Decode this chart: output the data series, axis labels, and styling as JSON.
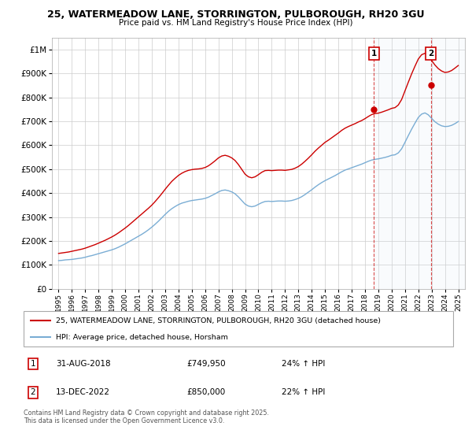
{
  "title": "25, WATERMEADOW LANE, STORRINGTON, PULBOROUGH, RH20 3GU",
  "subtitle": "Price paid vs. HM Land Registry's House Price Index (HPI)",
  "legend_line1": "25, WATERMEADOW LANE, STORRINGTON, PULBOROUGH, RH20 3GU (detached house)",
  "legend_line2": "HPI: Average price, detached house, Horsham",
  "marker1_date": "31-AUG-2018",
  "marker1_price": "£749,950",
  "marker1_hpi": "24% ↑ HPI",
  "marker2_date": "13-DEC-2022",
  "marker2_price": "£850,000",
  "marker2_hpi": "22% ↑ HPI",
  "footer": "Contains HM Land Registry data © Crown copyright and database right 2025.\nThis data is licensed under the Open Government Licence v3.0.",
  "red_color": "#cc0000",
  "blue_color": "#7aadd4",
  "shade_color": "#d8e8f3",
  "background_color": "#ffffff",
  "ylim": [
    0,
    1050000
  ],
  "yticks": [
    0,
    100000,
    200000,
    300000,
    400000,
    500000,
    600000,
    700000,
    800000,
    900000,
    1000000
  ],
  "ytick_labels": [
    "£0",
    "£100K",
    "£200K",
    "£300K",
    "£400K",
    "£500K",
    "£600K",
    "£700K",
    "£800K",
    "£900K",
    "£1M"
  ],
  "xlim_start": 1994.5,
  "xlim_end": 2025.5,
  "xticks": [
    1995,
    1996,
    1997,
    1998,
    1999,
    2000,
    2001,
    2002,
    2003,
    2004,
    2005,
    2006,
    2007,
    2008,
    2009,
    2010,
    2011,
    2012,
    2013,
    2014,
    2015,
    2016,
    2017,
    2018,
    2019,
    2020,
    2021,
    2022,
    2023,
    2024,
    2025
  ],
  "hpi_x": [
    1995.0,
    1995.25,
    1995.5,
    1995.75,
    1996.0,
    1996.25,
    1996.5,
    1996.75,
    1997.0,
    1997.25,
    1997.5,
    1997.75,
    1998.0,
    1998.25,
    1998.5,
    1998.75,
    1999.0,
    1999.25,
    1999.5,
    1999.75,
    2000.0,
    2000.25,
    2000.5,
    2000.75,
    2001.0,
    2001.25,
    2001.5,
    2001.75,
    2002.0,
    2002.25,
    2002.5,
    2002.75,
    2003.0,
    2003.25,
    2003.5,
    2003.75,
    2004.0,
    2004.25,
    2004.5,
    2004.75,
    2005.0,
    2005.25,
    2005.5,
    2005.75,
    2006.0,
    2006.25,
    2006.5,
    2006.75,
    2007.0,
    2007.25,
    2007.5,
    2007.75,
    2008.0,
    2008.25,
    2008.5,
    2008.75,
    2009.0,
    2009.25,
    2009.5,
    2009.75,
    2010.0,
    2010.25,
    2010.5,
    2010.75,
    2011.0,
    2011.25,
    2011.5,
    2011.75,
    2012.0,
    2012.25,
    2012.5,
    2012.75,
    2013.0,
    2013.25,
    2013.5,
    2013.75,
    2014.0,
    2014.25,
    2014.5,
    2014.75,
    2015.0,
    2015.25,
    2015.5,
    2015.75,
    2016.0,
    2016.25,
    2016.5,
    2016.75,
    2017.0,
    2017.25,
    2017.5,
    2017.75,
    2018.0,
    2018.25,
    2018.5,
    2018.75,
    2019.0,
    2019.25,
    2019.5,
    2019.75,
    2020.0,
    2020.25,
    2020.5,
    2020.75,
    2021.0,
    2021.25,
    2021.5,
    2021.75,
    2022.0,
    2022.25,
    2022.5,
    2022.75,
    2023.0,
    2023.25,
    2023.5,
    2023.75,
    2024.0,
    2024.25,
    2024.5,
    2024.75,
    2025.0
  ],
  "hpi_y": [
    118000,
    119000,
    121000,
    122000,
    123000,
    125000,
    127000,
    129000,
    132000,
    136000,
    139000,
    143000,
    147000,
    151000,
    155000,
    159000,
    163000,
    168000,
    174000,
    181000,
    188000,
    196000,
    204000,
    212000,
    220000,
    228000,
    237000,
    247000,
    258000,
    270000,
    283000,
    297000,
    311000,
    324000,
    335000,
    344000,
    352000,
    358000,
    362000,
    366000,
    369000,
    371000,
    373000,
    375000,
    378000,
    383000,
    390000,
    397000,
    405000,
    411000,
    413000,
    410000,
    405000,
    397000,
    384000,
    369000,
    354000,
    346000,
    343000,
    346000,
    353000,
    360000,
    365000,
    366000,
    365000,
    366000,
    367000,
    367000,
    366000,
    367000,
    369000,
    373000,
    378000,
    385000,
    394000,
    404000,
    414000,
    425000,
    435000,
    444000,
    452000,
    459000,
    466000,
    473000,
    481000,
    489000,
    496000,
    501000,
    506000,
    511000,
    516000,
    521000,
    527000,
    533000,
    538000,
    541000,
    543000,
    546000,
    549000,
    553000,
    558000,
    560000,
    568000,
    585000,
    612000,
    640000,
    667000,
    692000,
    716000,
    730000,
    735000,
    727000,
    712000,
    698000,
    688000,
    681000,
    678000,
    679000,
    683000,
    690000,
    699000
  ],
  "red_x": [
    1995.0,
    1995.25,
    1995.5,
    1995.75,
    1996.0,
    1996.25,
    1996.5,
    1996.75,
    1997.0,
    1997.25,
    1997.5,
    1997.75,
    1998.0,
    1998.25,
    1998.5,
    1998.75,
    1999.0,
    1999.25,
    1999.5,
    1999.75,
    2000.0,
    2000.25,
    2000.5,
    2000.75,
    2001.0,
    2001.25,
    2001.5,
    2001.75,
    2002.0,
    2002.25,
    2002.5,
    2002.75,
    2003.0,
    2003.25,
    2003.5,
    2003.75,
    2004.0,
    2004.25,
    2004.5,
    2004.75,
    2005.0,
    2005.25,
    2005.5,
    2005.75,
    2006.0,
    2006.25,
    2006.5,
    2006.75,
    2007.0,
    2007.25,
    2007.5,
    2007.75,
    2008.0,
    2008.25,
    2008.5,
    2008.75,
    2009.0,
    2009.25,
    2009.5,
    2009.75,
    2010.0,
    2010.25,
    2010.5,
    2010.75,
    2011.0,
    2011.25,
    2011.5,
    2011.75,
    2012.0,
    2012.25,
    2012.5,
    2012.75,
    2013.0,
    2013.25,
    2013.5,
    2013.75,
    2014.0,
    2014.25,
    2014.5,
    2014.75,
    2015.0,
    2015.25,
    2015.5,
    2015.75,
    2016.0,
    2016.25,
    2016.5,
    2016.75,
    2017.0,
    2017.25,
    2017.5,
    2017.75,
    2018.0,
    2018.25,
    2018.5,
    2018.75,
    2019.0,
    2019.25,
    2019.5,
    2019.75,
    2020.0,
    2020.25,
    2020.5,
    2020.75,
    2021.0,
    2021.25,
    2021.5,
    2021.75,
    2022.0,
    2022.25,
    2022.5,
    2022.75,
    2023.0,
    2023.25,
    2023.5,
    2023.75,
    2024.0,
    2024.25,
    2024.5,
    2024.75,
    2025.0
  ],
  "red_y": [
    148000,
    150000,
    152000,
    154000,
    157000,
    160000,
    163000,
    166000,
    170000,
    175000,
    180000,
    185000,
    191000,
    197000,
    203000,
    210000,
    217000,
    225000,
    234000,
    244000,
    254000,
    265000,
    277000,
    289000,
    301000,
    313000,
    325000,
    337000,
    350000,
    365000,
    381000,
    398000,
    416000,
    433000,
    449000,
    462000,
    474000,
    483000,
    490000,
    495000,
    498000,
    500000,
    501000,
    503000,
    507000,
    514000,
    524000,
    535000,
    547000,
    555000,
    558000,
    554000,
    547000,
    536000,
    519000,
    499000,
    479000,
    468000,
    464000,
    468000,
    477000,
    487000,
    494000,
    495000,
    494000,
    495000,
    496000,
    496000,
    495000,
    497000,
    499000,
    504000,
    511000,
    521000,
    533000,
    546000,
    560000,
    575000,
    588000,
    600000,
    612000,
    621000,
    631000,
    641000,
    651000,
    662000,
    671000,
    678000,
    684000,
    690000,
    697000,
    703000,
    711000,
    720000,
    728000,
    732000,
    734000,
    738000,
    743000,
    748000,
    754000,
    757000,
    768000,
    791000,
    827000,
    863000,
    898000,
    930000,
    960000,
    978000,
    984000,
    973000,
    954000,
    935000,
    920000,
    910000,
    904000,
    906000,
    912000,
    922000,
    933000
  ],
  "sale1_x": 2018.667,
  "sale1_y": 749950,
  "sale2_x": 2022.958,
  "sale2_y": 850000
}
